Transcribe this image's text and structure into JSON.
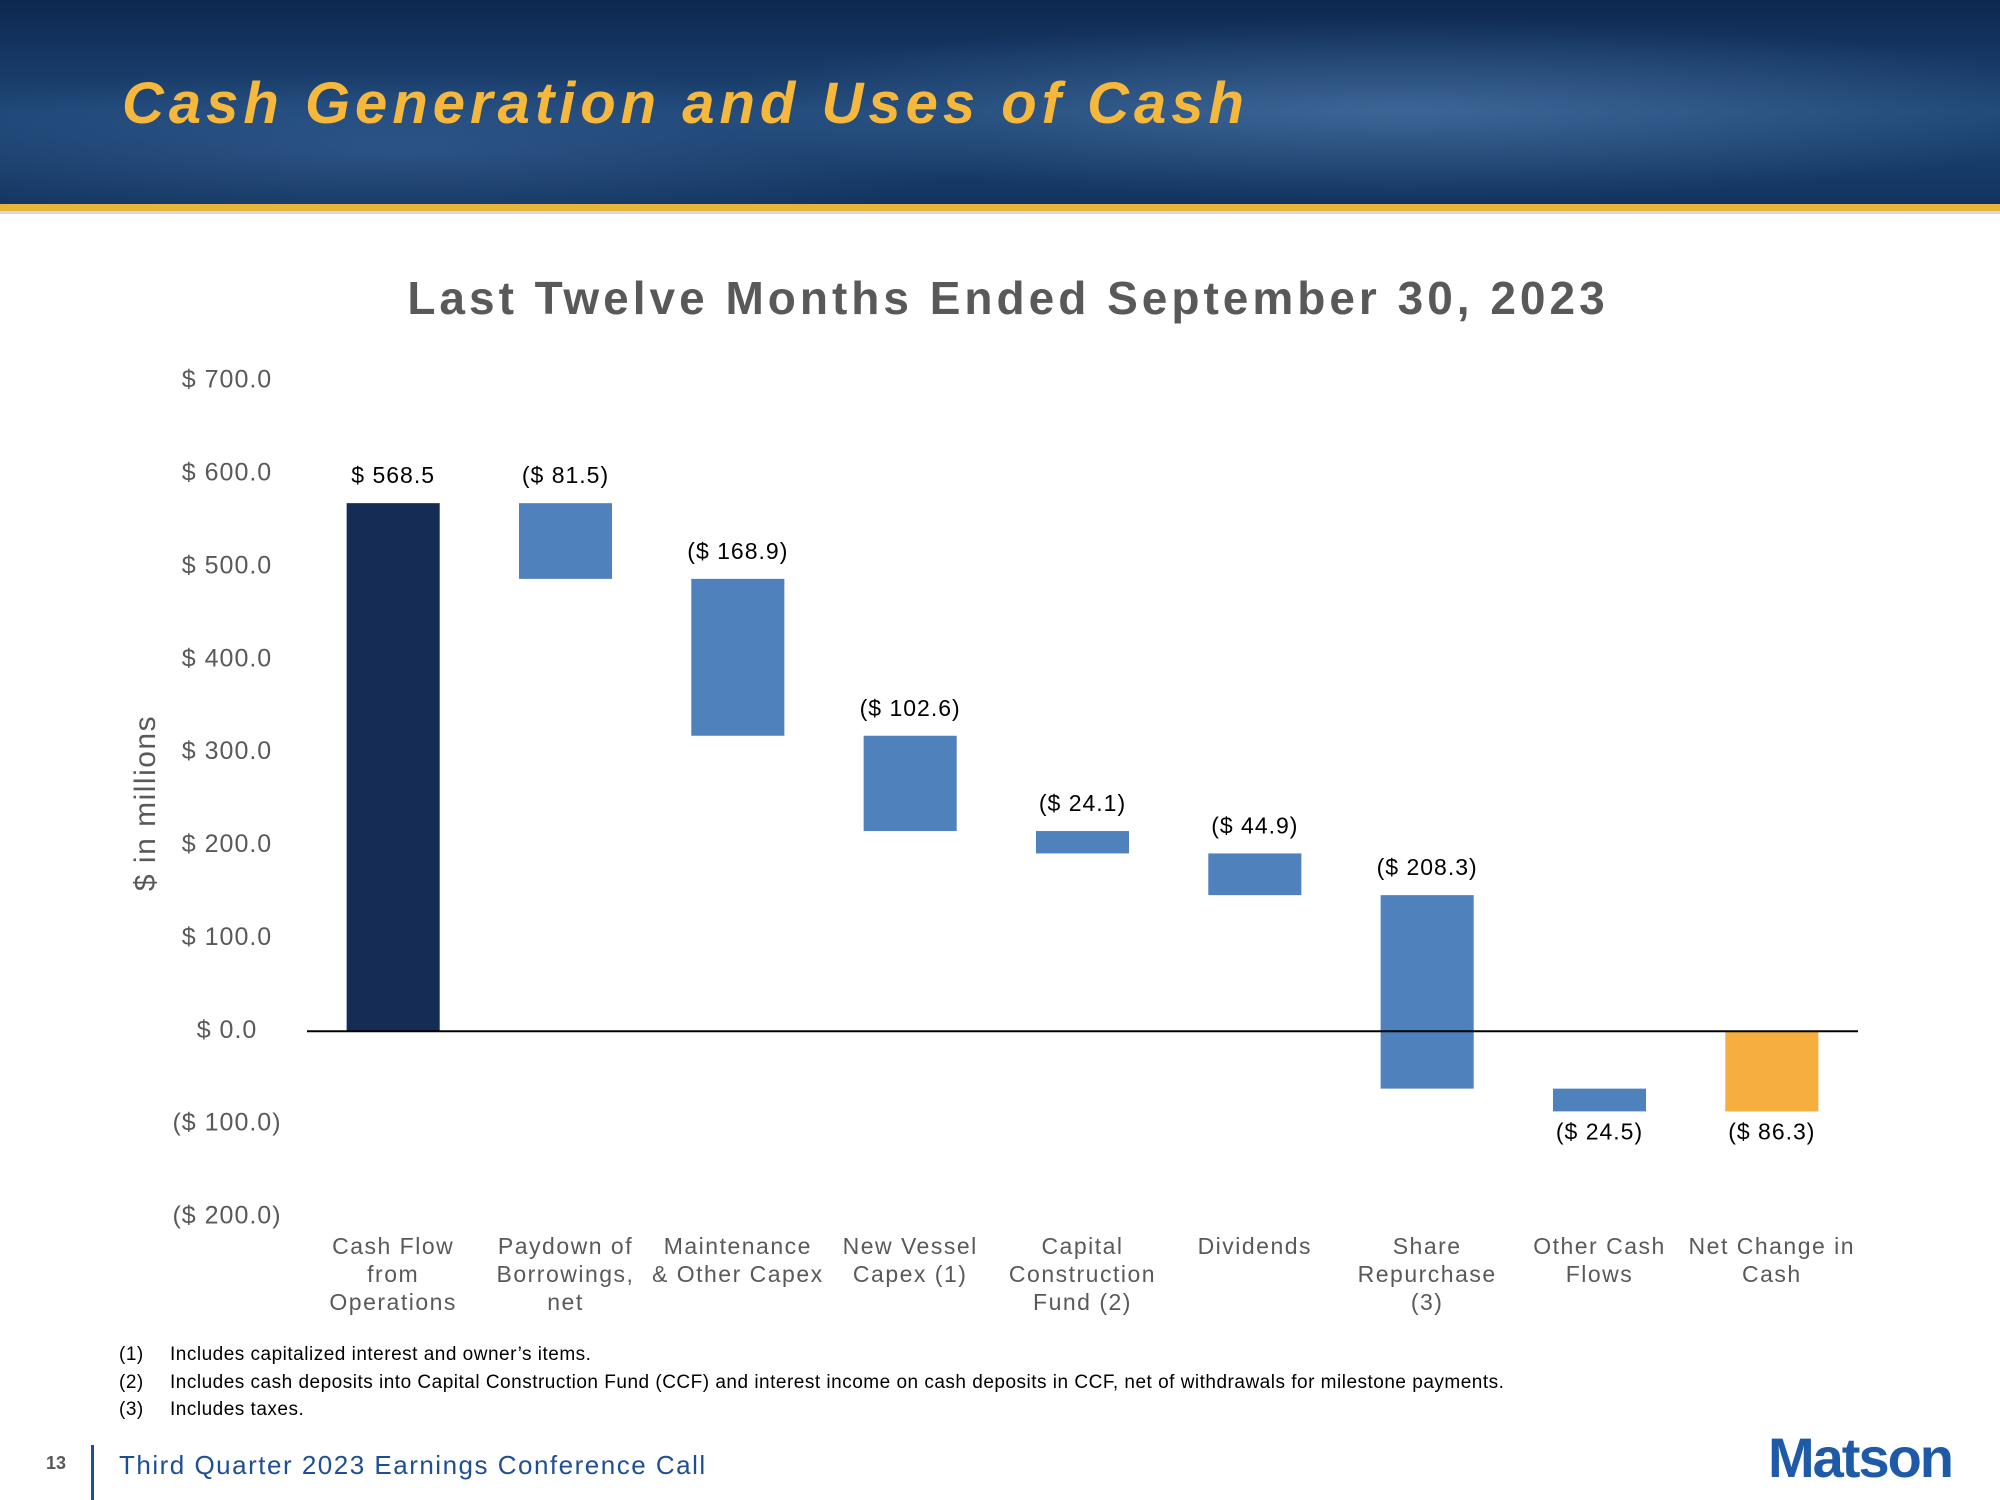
{
  "header": {
    "title": "Cash Generation and Uses of Cash"
  },
  "chart_data": {
    "type": "waterfall",
    "title": "Last Twelve Months Ended September 30, 2023",
    "y_label": "$ in millions",
    "categories": [
      "Cash Flow from Operations",
      "Paydown of Borrowings, net",
      "Maintenance & Other Capex",
      "New Vessel Capex (1)",
      "Capital Construction Fund (2)",
      "Dividends",
      "Share Repurchase (3)",
      "Other Cash Flows",
      "Net Change in Cash"
    ],
    "values": [
      568.5,
      -81.5,
      -168.9,
      -102.6,
      -24.1,
      -44.9,
      -208.3,
      -24.5,
      -86.3
    ],
    "value_labels": [
      "$ 568.5",
      "($ 81.5)",
      "($ 168.9)",
      "($ 102.6)",
      "($ 24.1)",
      "($ 44.9)",
      "($ 208.3)",
      "($ 24.5)",
      "($ 86.3)"
    ],
    "measure": [
      "absolute",
      "relative",
      "relative",
      "relative",
      "relative",
      "relative",
      "relative",
      "relative",
      "total"
    ],
    "colors": [
      "#152d54",
      "#4f81bd",
      "#4f81bd",
      "#4f81bd",
      "#4f81bd",
      "#4f81bd",
      "#4f81bd",
      "#4f81bd",
      "#f6ae3f"
    ],
    "ylim": [
      -200,
      700
    ],
    "yticks": [
      {
        "value": 700,
        "label": "$ 700.0"
      },
      {
        "value": 600,
        "label": "$ 600.0"
      },
      {
        "value": 500,
        "label": "$ 500.0"
      },
      {
        "value": 400,
        "label": "$ 400.0"
      },
      {
        "value": 300,
        "label": "$ 300.0"
      },
      {
        "value": 200,
        "label": "$ 200.0"
      },
      {
        "value": 100,
        "label": "$ 100.0"
      },
      {
        "value": 0,
        "label": "$ 0.0"
      },
      {
        "value": -100,
        "label": "($ 100.0)"
      },
      {
        "value": -200,
        "label": "($ 200.0)"
      }
    ],
    "grid": false
  },
  "footnotes": [
    {
      "marker": "(1)",
      "text": "Includes capitalized interest and owner’s items."
    },
    {
      "marker": "(2)",
      "text": "Includes cash deposits into Capital Construction Fund (CCF) and interest income on cash deposits in CCF, net of withdrawals for milestone payments."
    },
    {
      "marker": "(3)",
      "text": "Includes taxes."
    }
  ],
  "footer": {
    "page": "13",
    "text": "Third Quarter 2023 Earnings Conference Call",
    "logo": "Matson"
  }
}
